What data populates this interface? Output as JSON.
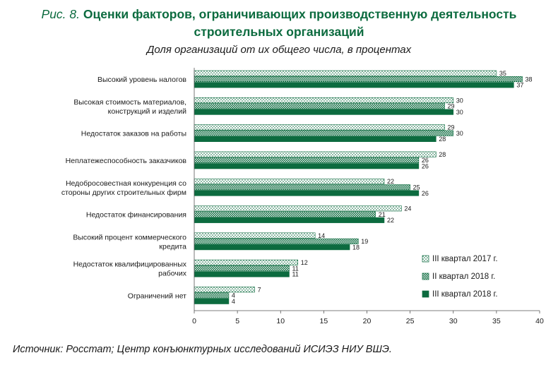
{
  "header": {
    "figure_label": "Рис. 8.",
    "title_line1": "Оценки факторов, ограничивающих производственную деятельность",
    "title_line2": "строительных организаций",
    "subtitle": "Доля организаций от их общего числа, в процентах"
  },
  "source": "Источник: Росстат; Центр конъюнктурных исследований ИСИЭЗ НИУ ВШЭ.",
  "colors": {
    "title": "#0c6b3f",
    "dark_green": "#0c6b3f",
    "light_green": "#6fbf8c"
  },
  "chart_data": {
    "type": "bar",
    "orientation": "horizontal",
    "categories": [
      [
        "Высокий уровень налогов"
      ],
      [
        "Высокая стоимость материалов,",
        "конструкций и изделий"
      ],
      [
        "Недостаток заказов на работы"
      ],
      [
        "Неплатежеспособность заказчиков"
      ],
      [
        "Недобросовестная конкуренция со",
        "стороны других строительных фирм"
      ],
      [
        "Недостаток финансирования"
      ],
      [
        "Высокий процент коммерческого",
        "кредита"
      ],
      [
        "Недостаток квалифицированных",
        "рабочих"
      ],
      [
        "Ограничений нет"
      ]
    ],
    "series": [
      {
        "name": "III квартал 2017 г.",
        "pattern": "dots-light",
        "values": [
          35,
          30,
          29,
          28,
          22,
          24,
          14,
          12,
          7
        ]
      },
      {
        "name": "II квартал 2018 г.",
        "pattern": "dots-dense",
        "values": [
          38,
          29,
          30,
          26,
          25,
          21,
          19,
          11,
          4
        ]
      },
      {
        "name": "III квартал 2018 г.",
        "pattern": "solid-dark",
        "values": [
          37,
          30,
          28,
          26,
          26,
          22,
          18,
          11,
          4
        ]
      }
    ],
    "xlim": [
      0,
      40
    ],
    "xticks": [
      0,
      5,
      10,
      15,
      20,
      25,
      30,
      35,
      40
    ],
    "grid": false,
    "legend_position": "bottom-right"
  }
}
